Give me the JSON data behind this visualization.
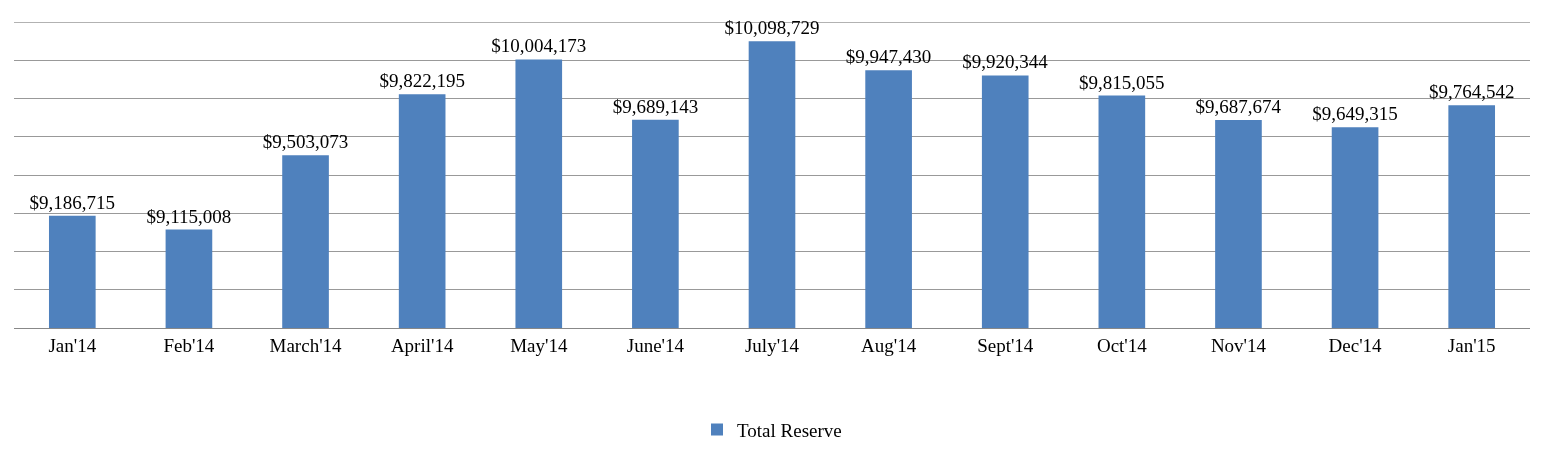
{
  "chart_data": {
    "type": "bar",
    "categories": [
      "Jan'14",
      "Feb'14",
      "March'14",
      "April'14",
      "May'14",
      "June'14",
      "July'14",
      "Aug'14",
      "Sept'14",
      "Oct'14",
      "Nov'14",
      "Dec'14",
      "Jan'15"
    ],
    "series": [
      {
        "name": "Total Reserve",
        "color": "#4f81bd",
        "values": [
          9186715,
          9115008,
          9503073,
          9822195,
          10004173,
          9689143,
          10098729,
          9947430,
          9920344,
          9815055,
          9687674,
          9649315,
          9764542
        ],
        "value_labels": [
          "$9,186,715",
          "$9,115,008",
          "$9,503,073",
          "$9,822,195",
          "$10,004,173",
          "$9,689,143",
          "$10,098,729",
          "$9,947,430",
          "$9,920,344",
          "$9,815,055",
          "$9,687,674",
          "$9,649,315",
          "$9,764,542"
        ]
      }
    ],
    "ylim": [
      8600000,
      10200000
    ],
    "yticks": [
      {
        "value": 8600000,
        "label": null
      },
      {
        "value": 8800000,
        "label": null
      },
      {
        "value": 9000000,
        "label": null
      },
      {
        "value": 9200000,
        "label": null
      },
      {
        "value": 9400000,
        "label": null
      },
      {
        "value": 9600000,
        "label": null
      },
      {
        "value": 9800000,
        "label": null
      },
      {
        "value": 10000000,
        "label": null
      },
      {
        "value": 10200000,
        "label": null
      }
    ],
    "tick_labels": "x",
    "grid": "y",
    "legend": "bottom"
  }
}
